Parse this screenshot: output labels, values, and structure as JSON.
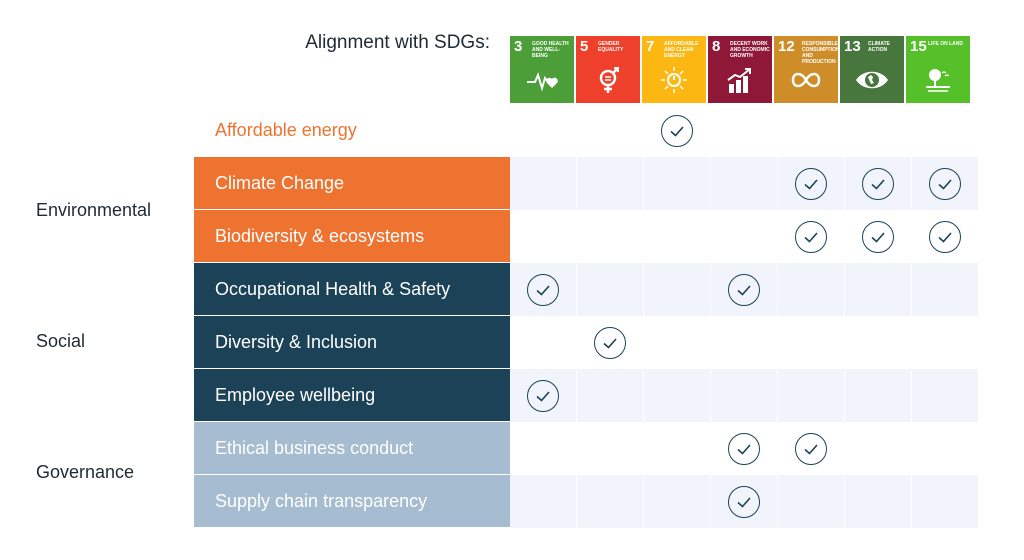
{
  "header": {
    "title": "Alignment with SDGs:"
  },
  "sdgs": [
    {
      "number": "3",
      "name": "Good Health and Well-being",
      "color": "#4c9f38",
      "icon": "heartbeat-icon"
    },
    {
      "number": "5",
      "name": "Gender Equality",
      "color": "#ef402b",
      "icon": "gender-equality-icon"
    },
    {
      "number": "7",
      "name": "Affordable and Clean Energy",
      "color": "#fdb713",
      "icon": "sun-power-icon"
    },
    {
      "number": "8",
      "name": "Decent Work and Economic Growth",
      "color": "#8f1838",
      "icon": "growth-chart-icon"
    },
    {
      "number": "12",
      "name": "Responsible Consumption and Production",
      "color": "#cf8d2a",
      "icon": "infinity-icon"
    },
    {
      "number": "13",
      "name": "Climate Action",
      "color": "#48773e",
      "icon": "eye-globe-icon"
    },
    {
      "number": "15",
      "name": "Life on Land",
      "color": "#56c02b",
      "icon": "tree-icon"
    }
  ],
  "groups": [
    {
      "name": "Environmental"
    },
    {
      "name": "Social"
    },
    {
      "name": "Governance"
    }
  ],
  "rows": [
    {
      "label": "Affordable energy",
      "category": "plain",
      "checks": [
        false,
        false,
        true,
        false,
        false,
        false,
        false
      ]
    },
    {
      "label": "Climate Change",
      "category": "env",
      "checks": [
        false,
        false,
        false,
        false,
        true,
        true,
        true
      ]
    },
    {
      "label": "Biodiversity & ecosystems",
      "category": "env",
      "checks": [
        false,
        false,
        false,
        false,
        true,
        true,
        true
      ]
    },
    {
      "label": "Occupational Health & Safety",
      "category": "soc",
      "checks": [
        true,
        false,
        false,
        true,
        false,
        false,
        false
      ]
    },
    {
      "label": "Diversity & Inclusion",
      "category": "soc",
      "checks": [
        false,
        true,
        false,
        false,
        false,
        false,
        false
      ]
    },
    {
      "label": "Employee wellbeing",
      "category": "soc",
      "checks": [
        true,
        false,
        false,
        false,
        false,
        false,
        false
      ]
    },
    {
      "label": "Ethical business conduct",
      "category": "gov",
      "checks": [
        false,
        false,
        false,
        true,
        true,
        false,
        false
      ]
    },
    {
      "label": "Supply chain transparency",
      "category": "gov",
      "checks": [
        false,
        false,
        false,
        true,
        false,
        false,
        false
      ]
    }
  ],
  "colors": {
    "environmental": "#ee7330",
    "social": "#1b4256",
    "governance": "#a6bcd0",
    "check": "#1b4256",
    "row_shade": "#f1f5fb"
  }
}
